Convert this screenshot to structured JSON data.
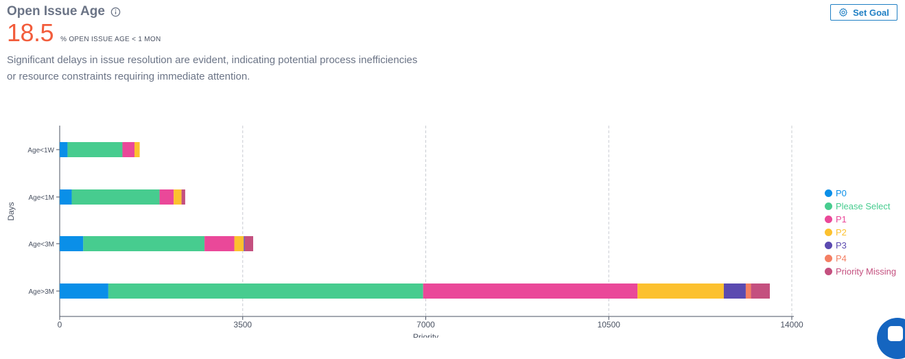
{
  "header": {
    "title": "Open Issue Age",
    "metric_value": "18.5",
    "metric_label": "% OPEN ISSUE AGE < 1 MON",
    "description": "Significant delays in issue resolution are evident, indicating potential process inefficiencies or resource constraints requiring immediate attention."
  },
  "actions": {
    "set_goal_label": "Set Goal"
  },
  "chart_data": {
    "type": "bar",
    "orientation": "horizontal",
    "stacked": true,
    "categories": [
      "Age<1W",
      "Age<1M",
      "Age<3M",
      "Age>3M"
    ],
    "series": [
      {
        "name": "P0",
        "color": "#0a8fe8",
        "values": [
          150,
          230,
          450,
          930
        ]
      },
      {
        "name": "Please Select",
        "color": "#47cc8f",
        "values": [
          1050,
          1680,
          2320,
          6020
        ]
      },
      {
        "name": "P1",
        "color": "#ea4899",
        "values": [
          230,
          270,
          570,
          4100
        ]
      },
      {
        "name": "P2",
        "color": "#fcc12f",
        "values": [
          100,
          150,
          180,
          1650
        ]
      },
      {
        "name": "P3",
        "color": "#5b4ab0",
        "values": [
          0,
          0,
          20,
          420
        ]
      },
      {
        "name": "P4",
        "color": "#f47f63",
        "values": [
          0,
          0,
          0,
          100
        ]
      },
      {
        "name": "Priority Missing",
        "color": "#c4507f",
        "values": [
          0,
          70,
          160,
          360
        ]
      }
    ],
    "xlabel": "Priority",
    "ylabel": "Days",
    "xlim": [
      0,
      14000
    ],
    "xticks": [
      0,
      3500,
      7000,
      10500,
      14000
    ],
    "grid": "vertical-dashed",
    "legend_position": "right"
  }
}
